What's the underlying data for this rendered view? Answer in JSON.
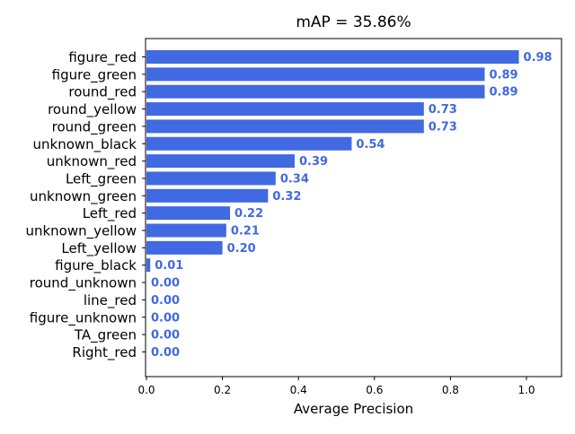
{
  "chart_data": {
    "type": "bar",
    "orientation": "horizontal",
    "title": "mAP = 35.86%",
    "xlabel": "Average Precision",
    "ylabel": "",
    "xlim": [
      0,
      1.09
    ],
    "xticks": [
      "0.0",
      "0.2",
      "0.4",
      "0.6",
      "0.8",
      "1.0"
    ],
    "bar_color": "#4169e1",
    "label_color": "#4169e1",
    "categories": [
      "figure_red",
      "figure_green",
      "round_red",
      "round_yellow",
      "round_green",
      "unknown_black",
      "unknown_red",
      "Left_green",
      "unknown_green",
      "Left_red",
      "unknown_yellow",
      "Left_yellow",
      "figure_black",
      "round_unknown",
      "line_red",
      "figure_unknown",
      "TA_green",
      "Right_red"
    ],
    "values": [
      0.98,
      0.89,
      0.89,
      0.73,
      0.73,
      0.54,
      0.39,
      0.34,
      0.32,
      0.22,
      0.21,
      0.2,
      0.01,
      0.0,
      0.0,
      0.0,
      0.0,
      0.0
    ],
    "value_labels": [
      "0.98",
      "0.89",
      "0.89",
      "0.73",
      "0.73",
      "0.54",
      "0.39",
      "0.34",
      "0.32",
      "0.22",
      "0.21",
      "0.20",
      "0.01",
      "0.00",
      "0.00",
      "0.00",
      "0.00",
      "0.00"
    ],
    "grid": false,
    "legend": "none"
  }
}
